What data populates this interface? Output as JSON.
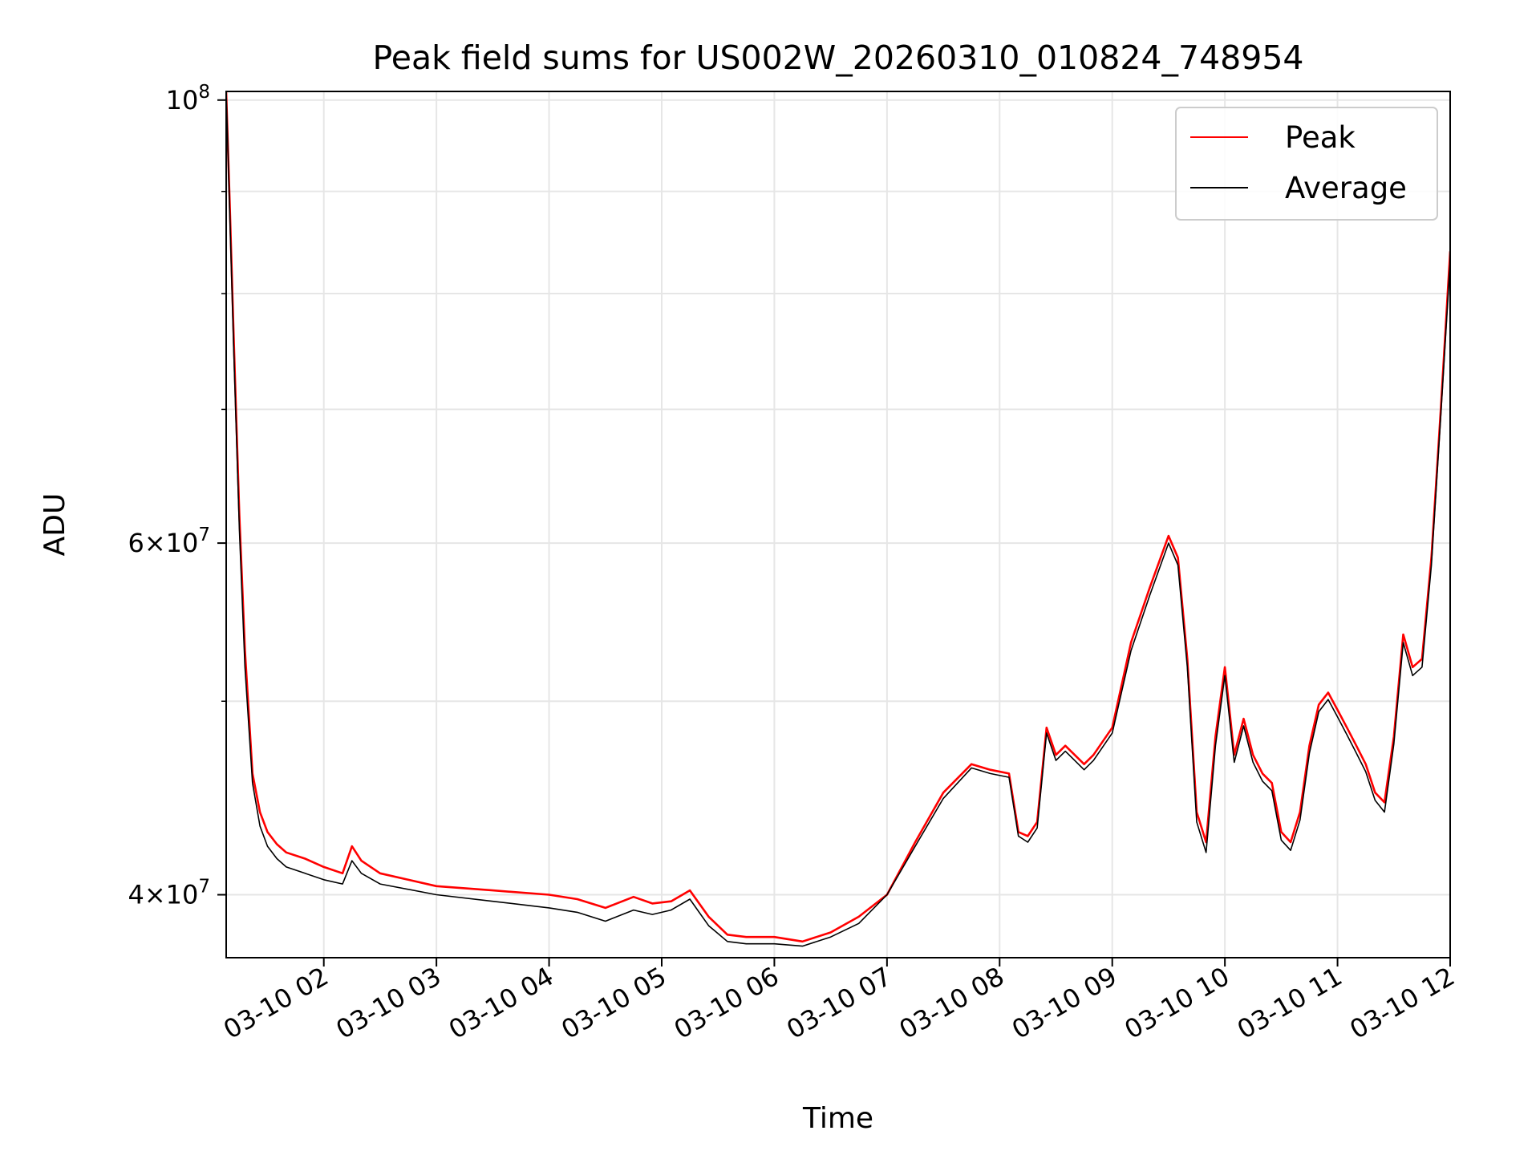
{
  "chart_data": {
    "type": "line",
    "title": "Peak field sums for US002W_20260310_010824_748954",
    "xlabel": "Time",
    "ylabel": "ADU",
    "x_scale": "time",
    "y_scale": "log",
    "xlim": [
      "03-10 01:08",
      "03-10 12:00"
    ],
    "ylim": [
      37200000,
      101000000
    ],
    "grid": true,
    "legend_position": "top-right",
    "x_ticks": [
      "03-10 02",
      "03-10 03",
      "03-10 04",
      "03-10 05",
      "03-10 06",
      "03-10 07",
      "03-10 08",
      "03-10 09",
      "03-10 10",
      "03-10 11",
      "03-10 12"
    ],
    "y_ticks": [
      {
        "value": 40000000,
        "base": "4",
        "exponent": "7"
      },
      {
        "value": 60000000,
        "base": "6",
        "exponent": "7"
      },
      {
        "value": 100000000,
        "base": "10",
        "exponent": "8"
      }
    ],
    "y_minor_ticks": [
      50000000,
      70000000,
      80000000,
      90000000
    ],
    "x": [
      "03-10 01:08",
      "03-10 01:10",
      "03-10 01:12",
      "03-10 01:15",
      "03-10 01:18",
      "03-10 01:22",
      "03-10 01:26",
      "03-10 01:30",
      "03-10 01:35",
      "03-10 01:40",
      "03-10 01:50",
      "03-10 02:00",
      "03-10 02:10",
      "03-10 02:15",
      "03-10 02:20",
      "03-10 02:30",
      "03-10 03:00",
      "03-10 03:30",
      "03-10 04:00",
      "03-10 04:15",
      "03-10 04:30",
      "03-10 04:45",
      "03-10 04:55",
      "03-10 05:05",
      "03-10 05:15",
      "03-10 05:25",
      "03-10 05:35",
      "03-10 05:45",
      "03-10 06:00",
      "03-10 06:15",
      "03-10 06:30",
      "03-10 06:45",
      "03-10 07:00",
      "03-10 07:15",
      "03-10 07:30",
      "03-10 07:45",
      "03-10 07:55",
      "03-10 08:05",
      "03-10 08:10",
      "03-10 08:15",
      "03-10 08:20",
      "03-10 08:25",
      "03-10 08:30",
      "03-10 08:35",
      "03-10 08:40",
      "03-10 08:45",
      "03-10 08:50",
      "03-10 09:00",
      "03-10 09:10",
      "03-10 09:20",
      "03-10 09:30",
      "03-10 09:35",
      "03-10 09:40",
      "03-10 09:45",
      "03-10 09:50",
      "03-10 09:55",
      "03-10 10:00",
      "03-10 10:05",
      "03-10 10:10",
      "03-10 10:15",
      "03-10 10:20",
      "03-10 10:25",
      "03-10 10:30",
      "03-10 10:35",
      "03-10 10:40",
      "03-10 10:45",
      "03-10 10:50",
      "03-10 10:55",
      "03-10 11:00",
      "03-10 11:05",
      "03-10 11:10",
      "03-10 11:15",
      "03-10 11:20",
      "03-10 11:25",
      "03-10 11:30",
      "03-10 11:35",
      "03-10 11:40",
      "03-10 11:45",
      "03-10 11:50",
      "03-10 11:55",
      "03-10 12:00"
    ],
    "series": [
      {
        "name": "Peak",
        "color": "#ff0000",
        "values": [
          101000000,
          88000000,
          76000000,
          62000000,
          53000000,
          46000000,
          44000000,
          43000000,
          42400000,
          42000000,
          41700000,
          41300000,
          41000000,
          42300000,
          41600000,
          41000000,
          40400000,
          40200000,
          40000000,
          39800000,
          39400000,
          39900000,
          39600000,
          39700000,
          40200000,
          39000000,
          38200000,
          38100000,
          38100000,
          37900000,
          38300000,
          39000000,
          40000000,
          42500000,
          45000000,
          46500000,
          46200000,
          46000000,
          43000000,
          42800000,
          43500000,
          48500000,
          47000000,
          47500000,
          47000000,
          46500000,
          47000000,
          48500000,
          53500000,
          57000000,
          60500000,
          59000000,
          52500000,
          44000000,
          42500000,
          48000000,
          52000000,
          47000000,
          49000000,
          47000000,
          46000000,
          45500000,
          43000000,
          42500000,
          44000000,
          47500000,
          49800000,
          50500000,
          49500000,
          48500000,
          47500000,
          46500000,
          45000000,
          44500000,
          48000000,
          54000000,
          52000000,
          52500000,
          59000000,
          70000000,
          84000000
        ]
      },
      {
        "name": "Average",
        "color": "#000000",
        "values": [
          101000000,
          87000000,
          75000000,
          61000000,
          52000000,
          45500000,
          43300000,
          42300000,
          41700000,
          41300000,
          41000000,
          40700000,
          40500000,
          41600000,
          41000000,
          40500000,
          40000000,
          39700000,
          39400000,
          39200000,
          38800000,
          39300000,
          39100000,
          39300000,
          39800000,
          38600000,
          37900000,
          37800000,
          37800000,
          37700000,
          38100000,
          38700000,
          40000000,
          42300000,
          44700000,
          46300000,
          46000000,
          45800000,
          42800000,
          42500000,
          43200000,
          48200000,
          46700000,
          47200000,
          46700000,
          46200000,
          46700000,
          48200000,
          53000000,
          56500000,
          60000000,
          58500000,
          52000000,
          43500000,
          42000000,
          47500000,
          51500000,
          46600000,
          48600000,
          46600000,
          45600000,
          45100000,
          42600000,
          42100000,
          43600000,
          47100000,
          49400000,
          50100000,
          49100000,
          48100000,
          47100000,
          46100000,
          44600000,
          44000000,
          47600000,
          53500000,
          51500000,
          52000000,
          58500000,
          69500000,
          83000000
        ]
      }
    ]
  }
}
